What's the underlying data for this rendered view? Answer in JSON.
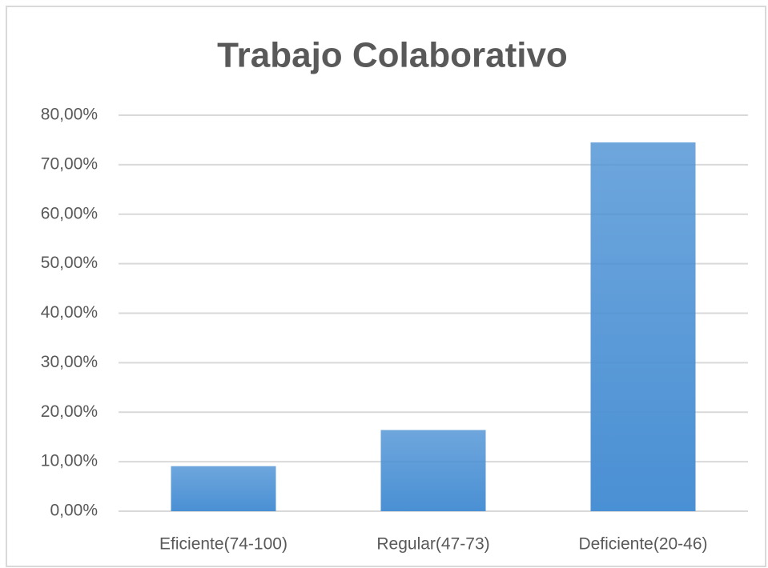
{
  "chart_data": {
    "type": "bar",
    "title": "Trabajo Colaborativo",
    "categories": [
      "Eficiente(74-100)",
      "Regular(47-73)",
      "Deficiente(20-46)"
    ],
    "values": [
      9.1,
      16.4,
      74.5
    ],
    "color": "#4a90d4",
    "ylim": [
      0,
      80
    ],
    "yticks": [
      {
        "value": 0,
        "label": "0,00%"
      },
      {
        "value": 10,
        "label": "10,00%"
      },
      {
        "value": 20,
        "label": "20,00%"
      },
      {
        "value": 30,
        "label": "30,00%"
      },
      {
        "value": 40,
        "label": "40,00%"
      },
      {
        "value": 50,
        "label": "50,00%"
      },
      {
        "value": 60,
        "label": "60,00%"
      },
      {
        "value": 70,
        "label": "70,00%"
      },
      {
        "value": 80,
        "label": "80,00%"
      }
    ],
    "grid": true
  }
}
